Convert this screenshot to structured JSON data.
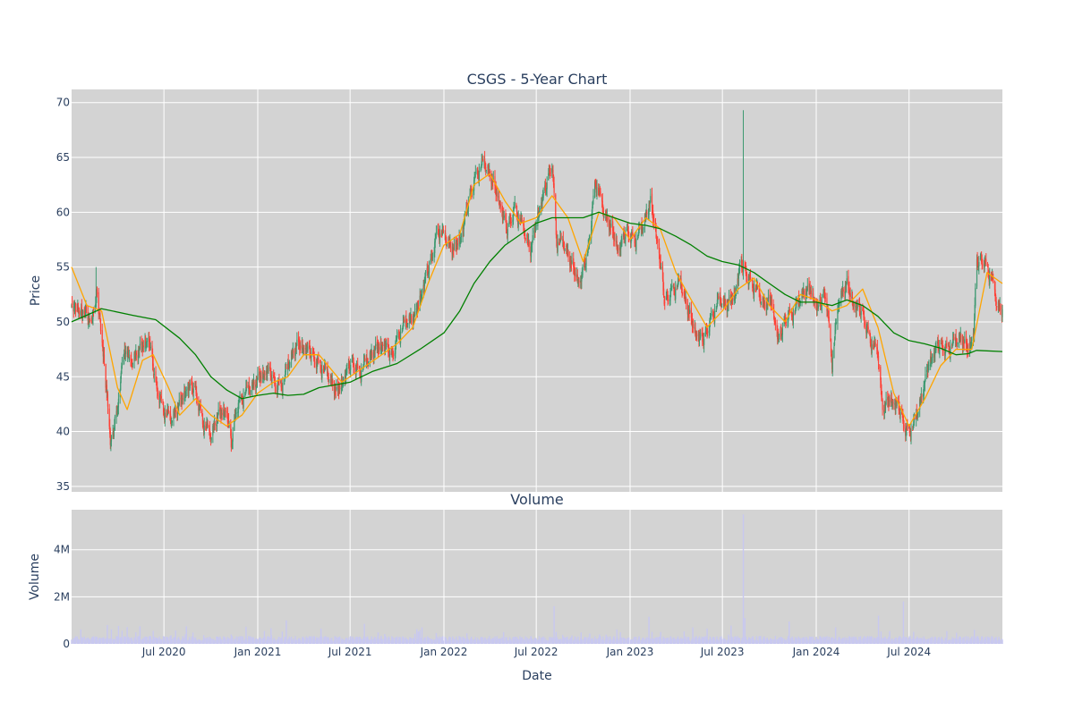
{
  "chart_data": [
    {
      "type": "candlestick",
      "title": "CSGS - 5-Year Chart",
      "xlabel": "",
      "ylabel": "Price",
      "ylim": [
        34.5,
        71.2
      ],
      "yticks": [
        35,
        40,
        45,
        50,
        55,
        60,
        65,
        70
      ],
      "grid": true,
      "x_range": [
        "2020-01-02",
        "2024-12-31"
      ],
      "x_gridlines": [
        "2020-07-01",
        "2021-01-01",
        "2021-07-01",
        "2022-01-01",
        "2022-07-01",
        "2023-01-01",
        "2023-07-01",
        "2024-01-01",
        "2024-07-01"
      ],
      "up_color": "#3d9970",
      "down_color": "#ff4136",
      "close_anchors": [
        [
          "2020-01-02",
          51.5
        ],
        [
          "2020-01-20",
          51.0
        ],
        [
          "2020-02-05",
          50.5
        ],
        [
          "2020-02-20",
          52.0
        ],
        [
          "2020-03-05",
          47.0
        ],
        [
          "2020-03-12",
          43.0
        ],
        [
          "2020-03-18",
          38.5
        ],
        [
          "2020-03-25",
          40.0
        ],
        [
          "2020-04-05",
          44.0
        ],
        [
          "2020-04-15",
          47.0
        ],
        [
          "2020-05-01",
          46.5
        ],
        [
          "2020-05-15",
          47.5
        ],
        [
          "2020-06-01",
          48.5
        ],
        [
          "2020-06-15",
          44.0
        ],
        [
          "2020-07-01",
          42.0
        ],
        [
          "2020-07-15",
          41.0
        ],
        [
          "2020-08-01",
          42.5
        ],
        [
          "2020-08-15",
          44.0
        ],
        [
          "2020-09-01",
          43.5
        ],
        [
          "2020-09-15",
          41.0
        ],
        [
          "2020-10-01",
          39.5
        ],
        [
          "2020-10-15",
          41.5
        ],
        [
          "2020-11-01",
          42.0
        ],
        [
          "2020-11-10",
          38.5
        ],
        [
          "2020-11-20",
          42.0
        ],
        [
          "2020-12-05",
          43.5
        ],
        [
          "2020-12-20",
          44.0
        ],
        [
          "2021-01-05",
          45.0
        ],
        [
          "2021-01-20",
          45.5
        ],
        [
          "2021-02-05",
          44.0
        ],
        [
          "2021-02-20",
          44.5
        ],
        [
          "2021-03-05",
          46.5
        ],
        [
          "2021-03-20",
          48.0
        ],
        [
          "2021-04-05",
          47.5
        ],
        [
          "2021-04-20",
          46.5
        ],
        [
          "2021-05-05",
          46.0
        ],
        [
          "2021-05-20",
          45.0
        ],
        [
          "2021-06-05",
          43.5
        ],
        [
          "2021-06-20",
          45.0
        ],
        [
          "2021-07-05",
          46.0
        ],
        [
          "2021-07-20",
          45.5
        ],
        [
          "2021-08-05",
          46.5
        ],
        [
          "2021-08-20",
          47.5
        ],
        [
          "2021-09-05",
          48.0
        ],
        [
          "2021-09-20",
          46.5
        ],
        [
          "2021-10-05",
          49.0
        ],
        [
          "2021-10-20",
          50.0
        ],
        [
          "2021-11-05",
          50.5
        ],
        [
          "2021-11-20",
          53.0
        ],
        [
          "2021-12-05",
          55.0
        ],
        [
          "2021-12-20",
          58.5
        ],
        [
          "2022-01-05",
          57.5
        ],
        [
          "2022-01-20",
          56.5
        ],
        [
          "2022-02-05",
          58.0
        ],
        [
          "2022-02-20",
          61.0
        ],
        [
          "2022-03-05",
          63.5
        ],
        [
          "2022-03-20",
          64.5
        ],
        [
          "2022-04-05",
          63.0
        ],
        [
          "2022-04-20",
          61.0
        ],
        [
          "2022-05-05",
          58.0
        ],
        [
          "2022-05-20",
          60.5
        ],
        [
          "2022-06-05",
          58.5
        ],
        [
          "2022-06-20",
          56.5
        ],
        [
          "2022-07-05",
          60.0
        ],
        [
          "2022-07-20",
          62.0
        ],
        [
          "2022-08-01",
          64.5
        ],
        [
          "2022-08-10",
          57.5
        ],
        [
          "2022-08-25",
          57.0
        ],
        [
          "2022-09-10",
          55.0
        ],
        [
          "2022-09-25",
          53.5
        ],
        [
          "2022-10-10",
          56.0
        ],
        [
          "2022-10-25",
          63.0
        ],
        [
          "2022-11-10",
          60.0
        ],
        [
          "2022-11-25",
          58.5
        ],
        [
          "2022-12-10",
          56.5
        ],
        [
          "2022-12-25",
          58.0
        ],
        [
          "2023-01-10",
          57.5
        ],
        [
          "2023-01-25",
          58.5
        ],
        [
          "2023-02-10",
          61.0
        ],
        [
          "2023-02-25",
          57.0
        ],
        [
          "2023-03-10",
          51.5
        ],
        [
          "2023-03-25",
          53.0
        ],
        [
          "2023-04-10",
          53.5
        ],
        [
          "2023-04-25",
          51.0
        ],
        [
          "2023-05-10",
          49.0
        ],
        [
          "2023-05-25",
          48.0
        ],
        [
          "2023-06-10",
          50.5
        ],
        [
          "2023-06-25",
          52.0
        ],
        [
          "2023-07-10",
          51.5
        ],
        [
          "2023-07-25",
          52.5
        ],
        [
          "2023-08-05",
          55.0
        ],
        [
          "2023-08-20",
          54.0
        ],
        [
          "2023-09-05",
          53.0
        ],
        [
          "2023-09-20",
          51.5
        ],
        [
          "2023-10-05",
          52.0
        ],
        [
          "2023-10-20",
          48.0
        ],
        [
          "2023-11-05",
          50.5
        ],
        [
          "2023-11-20",
          51.0
        ],
        [
          "2023-12-05",
          52.5
        ],
        [
          "2023-12-20",
          53.0
        ],
        [
          "2024-01-05",
          51.0
        ],
        [
          "2024-01-20",
          52.5
        ],
        [
          "2024-02-01",
          46.5
        ],
        [
          "2024-02-15",
          52.0
        ],
        [
          "2024-03-01",
          53.5
        ],
        [
          "2024-03-15",
          51.5
        ],
        [
          "2024-04-01",
          50.5
        ],
        [
          "2024-04-15",
          48.5
        ],
        [
          "2024-05-01",
          47.0
        ],
        [
          "2024-05-10",
          42.0
        ],
        [
          "2024-05-25",
          43.0
        ],
        [
          "2024-06-10",
          42.0
        ],
        [
          "2024-06-25",
          40.0
        ],
        [
          "2024-07-10",
          40.5
        ],
        [
          "2024-07-25",
          43.0
        ],
        [
          "2024-08-10",
          46.5
        ],
        [
          "2024-08-25",
          47.5
        ],
        [
          "2024-09-10",
          47.5
        ],
        [
          "2024-09-25",
          48.0
        ],
        [
          "2024-10-10",
          48.5
        ],
        [
          "2024-10-25",
          47.5
        ],
        [
          "2024-11-05",
          49.0
        ],
        [
          "2024-11-10",
          55.0
        ],
        [
          "2024-11-25",
          55.5
        ],
        [
          "2024-12-10",
          54.0
        ],
        [
          "2024-12-20",
          51.5
        ],
        [
          "2024-12-31",
          51.0
        ]
      ],
      "spikes": [
        [
          "2020-02-19",
          55.0
        ],
        [
          "2023-08-11",
          69.3
        ]
      ],
      "overlays": [
        {
          "name": "",
          "color": "#ffa500",
          "points": [
            [
              "2020-01-02",
              55.0
            ],
            [
              "2020-02-01",
              51.5
            ],
            [
              "2020-03-01",
              51.0
            ],
            [
              "2020-04-01",
              44.0
            ],
            [
              "2020-04-20",
              42.0
            ],
            [
              "2020-05-20",
              46.5
            ],
            [
              "2020-06-10",
              47.0
            ],
            [
              "2020-07-10",
              44.0
            ],
            [
              "2020-08-01",
              41.5
            ],
            [
              "2020-09-01",
              43.0
            ],
            [
              "2020-10-01",
              41.5
            ],
            [
              "2020-11-01",
              40.5
            ],
            [
              "2020-12-01",
              41.5
            ],
            [
              "2021-01-01",
              43.5
            ],
            [
              "2021-02-01",
              44.5
            ],
            [
              "2021-03-01",
              45.0
            ],
            [
              "2021-04-01",
              47.0
            ],
            [
              "2021-05-01",
              47.0
            ],
            [
              "2021-06-15",
              44.5
            ],
            [
              "2021-08-01",
              46.0
            ],
            [
              "2021-09-01",
              47.0
            ],
            [
              "2021-10-01",
              48.0
            ],
            [
              "2021-11-01",
              49.5
            ],
            [
              "2021-12-01",
              53.5
            ],
            [
              "2022-01-01",
              57.0
            ],
            [
              "2022-02-01",
              58.0
            ],
            [
              "2022-03-01",
              62.5
            ],
            [
              "2022-04-01",
              63.5
            ],
            [
              "2022-05-01",
              61.0
            ],
            [
              "2022-06-01",
              59.0
            ],
            [
              "2022-07-01",
              59.5
            ],
            [
              "2022-08-01",
              61.5
            ],
            [
              "2022-09-01",
              59.5
            ],
            [
              "2022-10-01",
              55.5
            ],
            [
              "2022-11-01",
              60.0
            ],
            [
              "2022-12-01",
              59.5
            ],
            [
              "2023-01-01",
              57.5
            ],
            [
              "2023-02-01",
              59.5
            ],
            [
              "2023-03-01",
              58.5
            ],
            [
              "2023-04-01",
              54.5
            ],
            [
              "2023-05-01",
              52.0
            ],
            [
              "2023-06-01",
              49.5
            ],
            [
              "2023-07-01",
              51.0
            ],
            [
              "2023-08-01",
              53.0
            ],
            [
              "2023-09-01",
              54.0
            ],
            [
              "2023-10-01",
              51.5
            ],
            [
              "2023-11-01",
              50.0
            ],
            [
              "2023-12-01",
              52.5
            ],
            [
              "2024-01-01",
              52.0
            ],
            [
              "2024-02-01",
              51.0
            ],
            [
              "2024-03-01",
              51.5
            ],
            [
              "2024-04-01",
              53.0
            ],
            [
              "2024-05-01",
              49.5
            ],
            [
              "2024-06-01",
              43.5
            ],
            [
              "2024-07-01",
              40.5
            ],
            [
              "2024-08-01",
              43.0
            ],
            [
              "2024-09-01",
              46.0
            ],
            [
              "2024-10-01",
              47.5
            ],
            [
              "2024-11-01",
              47.5
            ],
            [
              "2024-12-01",
              54.5
            ],
            [
              "2024-12-31",
              53.5
            ]
          ]
        },
        {
          "name": "",
          "color": "#008000",
          "points": [
            [
              "2020-01-02",
              50.0
            ],
            [
              "2020-03-01",
              51.2
            ],
            [
              "2020-05-01",
              50.6
            ],
            [
              "2020-06-15",
              50.2
            ],
            [
              "2020-08-01",
              48.5
            ],
            [
              "2020-09-01",
              47.0
            ],
            [
              "2020-10-01",
              45.0
            ],
            [
              "2020-11-01",
              43.8
            ],
            [
              "2020-12-01",
              43.0
            ],
            [
              "2021-01-01",
              43.3
            ],
            [
              "2021-02-01",
              43.5
            ],
            [
              "2021-03-01",
              43.3
            ],
            [
              "2021-04-01",
              43.4
            ],
            [
              "2021-05-01",
              44.0
            ],
            [
              "2021-07-01",
              44.5
            ],
            [
              "2021-08-15",
              45.5
            ],
            [
              "2021-10-01",
              46.2
            ],
            [
              "2021-11-15",
              47.5
            ],
            [
              "2022-01-01",
              49.0
            ],
            [
              "2022-02-01",
              51.0
            ],
            [
              "2022-03-01",
              53.5
            ],
            [
              "2022-04-01",
              55.5
            ],
            [
              "2022-05-01",
              57.0
            ],
            [
              "2022-06-01",
              58.0
            ],
            [
              "2022-07-01",
              59.0
            ],
            [
              "2022-08-01",
              59.5
            ],
            [
              "2022-09-01",
              59.5
            ],
            [
              "2022-10-01",
              59.5
            ],
            [
              "2022-11-01",
              60.0
            ],
            [
              "2022-12-01",
              59.5
            ],
            [
              "2023-01-01",
              59.0
            ],
            [
              "2023-02-01",
              58.8
            ],
            [
              "2023-03-01",
              58.5
            ],
            [
              "2023-04-01",
              57.8
            ],
            [
              "2023-05-01",
              57.0
            ],
            [
              "2023-06-01",
              56.0
            ],
            [
              "2023-07-01",
              55.5
            ],
            [
              "2023-08-01",
              55.2
            ],
            [
              "2023-09-01",
              54.5
            ],
            [
              "2023-10-01",
              53.5
            ],
            [
              "2023-11-01",
              52.5
            ],
            [
              "2023-12-01",
              51.8
            ],
            [
              "2024-01-01",
              51.8
            ],
            [
              "2024-02-01",
              51.5
            ],
            [
              "2024-03-01",
              52.0
            ],
            [
              "2024-04-01",
              51.5
            ],
            [
              "2024-05-01",
              50.5
            ],
            [
              "2024-06-01",
              49.0
            ],
            [
              "2024-07-01",
              48.3
            ],
            [
              "2024-08-01",
              48.0
            ],
            [
              "2024-09-01",
              47.6
            ],
            [
              "2024-10-01",
              47.0
            ],
            [
              "2024-10-25",
              47.1
            ],
            [
              "2024-11-10",
              47.4
            ],
            [
              "2024-12-31",
              47.3
            ]
          ]
        }
      ]
    },
    {
      "type": "bar",
      "title": "Volume",
      "xlabel": "Date",
      "ylabel": "Volume",
      "ylim": [
        0,
        5700000
      ],
      "ytick_values": [
        0,
        2000000,
        4000000
      ],
      "ytick_labels": [
        "0",
        "2M",
        "4M"
      ],
      "xtick_dates": [
        "2020-07-01",
        "2021-01-01",
        "2021-07-01",
        "2022-01-01",
        "2022-07-01",
        "2023-01-01",
        "2023-07-01",
        "2024-01-01",
        "2024-07-01"
      ],
      "xtick_labels": [
        "Jul 2020",
        "Jan 2021",
        "Jul 2021",
        "Jan 2022",
        "Jul 2022",
        "Jan 2023",
        "Jul 2023",
        "Jan 2024",
        "Jul 2024"
      ],
      "grid": true,
      "bar_color": "#c8c8f0",
      "baseline_volume": 230000,
      "volume_spikes": [
        [
          "2020-03-12",
          800000
        ],
        [
          "2020-03-20",
          620000
        ],
        [
          "2020-05-15",
          750000
        ],
        [
          "2020-11-10",
          400000
        ],
        [
          "2021-02-26",
          1000000
        ],
        [
          "2021-05-05",
          650000
        ],
        [
          "2021-07-29",
          850000
        ],
        [
          "2022-02-15",
          450000
        ],
        [
          "2022-04-28",
          500000
        ],
        [
          "2022-08-05",
          1600000
        ],
        [
          "2022-11-02",
          400000
        ],
        [
          "2023-02-07",
          1150000
        ],
        [
          "2023-05-04",
          700000
        ],
        [
          "2023-08-11",
          5500000
        ],
        [
          "2023-08-14",
          1100000
        ],
        [
          "2023-11-09",
          950000
        ],
        [
          "2024-02-08",
          700000
        ],
        [
          "2024-05-02",
          1200000
        ],
        [
          "2024-06-20",
          1800000
        ],
        [
          "2024-11-06",
          600000
        ]
      ]
    }
  ]
}
